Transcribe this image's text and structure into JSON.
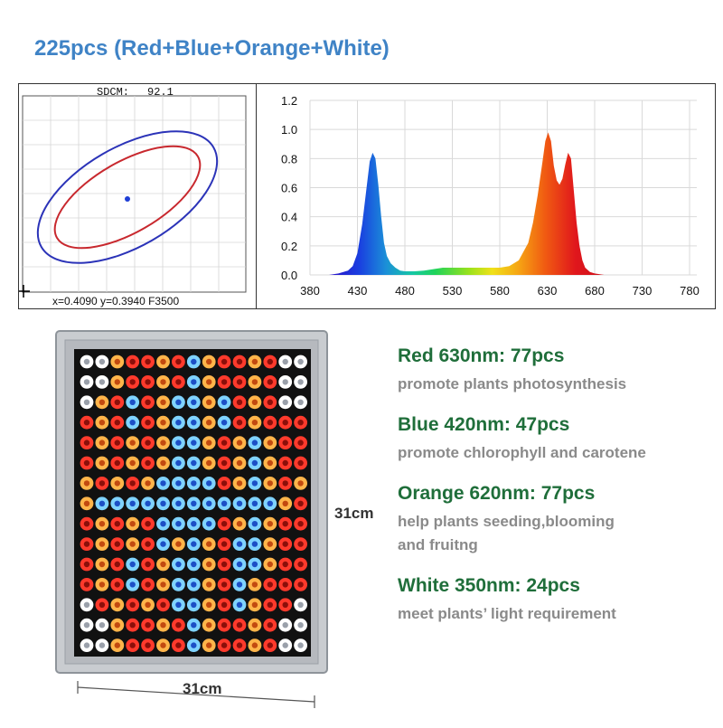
{
  "title": "225pcs (Red+Blue+Orange+White)",
  "cie_chart": {
    "sdcm_label": "SDCM:",
    "sdcm_value": "92.1",
    "coords_label": "x=0.4090 y=0.3940 F3500",
    "outer_ellipse_color": "#2b33b8",
    "inner_ellipse_color": "#c8282e",
    "point_color": "#1f3fd6"
  },
  "chart_data": {
    "type": "area",
    "title": "",
    "xlabel": "",
    "ylabel": "",
    "xlim": [
      380,
      780
    ],
    "ylim": [
      0,
      1.2
    ],
    "x_ticks": [
      380,
      430,
      480,
      530,
      580,
      630,
      680,
      730,
      780
    ],
    "y_ticks": [
      0.0,
      0.2,
      0.4,
      0.6,
      0.8,
      1.0,
      1.2
    ],
    "grid": true,
    "series": [
      {
        "x": [
          400,
          410,
          420,
          425,
          430,
          435,
          440,
          443,
          446,
          449,
          452,
          455,
          458,
          461,
          465,
          470,
          475,
          480,
          490,
          500,
          510,
          520,
          530,
          540,
          550,
          560,
          570,
          580,
          590,
          600,
          610,
          615,
          620,
          625,
          628,
          631,
          634,
          637,
          640,
          643,
          646,
          649,
          652,
          655,
          658,
          661,
          664,
          667,
          670,
          675,
          680,
          690
        ],
        "values": [
          0.0,
          0.01,
          0.03,
          0.06,
          0.15,
          0.35,
          0.62,
          0.78,
          0.84,
          0.8,
          0.62,
          0.4,
          0.22,
          0.13,
          0.08,
          0.05,
          0.03,
          0.025,
          0.025,
          0.03,
          0.04,
          0.05,
          0.05,
          0.05,
          0.05,
          0.05,
          0.05,
          0.05,
          0.06,
          0.1,
          0.22,
          0.36,
          0.55,
          0.78,
          0.92,
          0.98,
          0.92,
          0.75,
          0.65,
          0.62,
          0.66,
          0.76,
          0.84,
          0.8,
          0.58,
          0.36,
          0.2,
          0.1,
          0.05,
          0.02,
          0.01,
          0.0
        ]
      }
    ]
  },
  "panel": {
    "height_label": "31cm",
    "width_label": "31cm",
    "led_counts": {
      "red": 77,
      "blue": 47,
      "orange": 77,
      "white": 24
    }
  },
  "specs": [
    {
      "title": "Red 630nm: 77pcs",
      "desc": [
        "promote plants photosynthesis"
      ]
    },
    {
      "title": "Blue 420nm: 47pcs",
      "desc": [
        "promote chlorophyll and carotene"
      ]
    },
    {
      "title": "Orange 620nm: 77pcs",
      "desc": [
        "help plants seeding,blooming",
        "and fruitng"
      ]
    },
    {
      "title": "White 350nm: 24pcs",
      "desc": [
        "meet plants’ light requirement"
      ]
    }
  ]
}
